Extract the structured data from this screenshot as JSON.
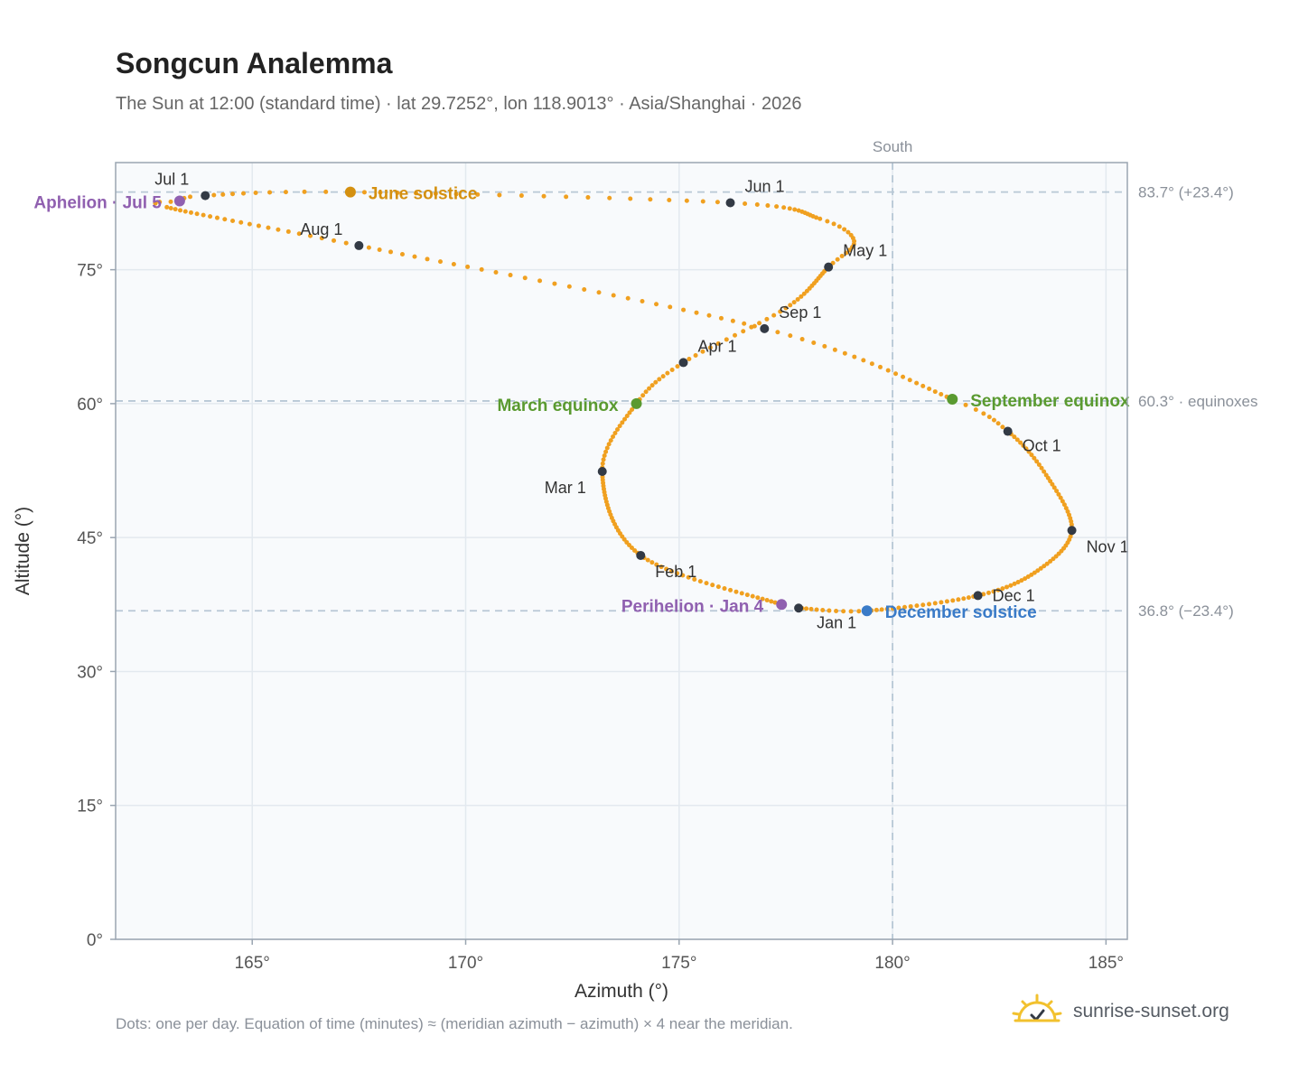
{
  "title": "Songcun Analemma",
  "subtitle": "The Sun at 12:00 (standard time) · lat 29.7252°, lon 118.9013° · Asia/Shanghai · 2026",
  "footnote": "Dots: one per day. Equation of time (minutes) ≈ (meridian azimuth − azimuth) × 4 near the meridian.",
  "brand": {
    "text": "sunrise-sunset.org",
    "icon": "sun-logo-icon"
  },
  "colors": {
    "path": "#f0a020",
    "month_marker": "#333a45",
    "equinox": "#5a9a30",
    "june_solstice": "#d49010",
    "december_solstice": "#3a7bc8",
    "apsis": "#9060b0",
    "guide": "#b8c8d6",
    "plot_bg": "#f8fafc",
    "frame": "#9aa5b1"
  },
  "chart_data": {
    "type": "scatter",
    "xlabel": "Azimuth (°)",
    "ylabel": "Altitude (°)",
    "xlim": [
      161.8,
      185.5
    ],
    "ylim": [
      0,
      87
    ],
    "xticks": [
      165,
      170,
      175,
      180,
      185
    ],
    "xtick_labels": [
      "165°",
      "170°",
      "175°",
      "180°",
      "185°"
    ],
    "yticks": [
      0,
      15,
      30,
      45,
      60,
      75
    ],
    "ytick_labels": [
      "0°",
      "15°",
      "30°",
      "45°",
      "60°",
      "75°"
    ],
    "grid": true,
    "meridian": {
      "x": 180,
      "label": "South"
    },
    "reference_lines": [
      {
        "y": 83.7,
        "label": "83.7° (+23.4°)"
      },
      {
        "y": 60.3,
        "label": "60.3° · equinoxes"
      },
      {
        "y": 36.8,
        "label": "36.8° (−23.4°)"
      }
    ],
    "anchors": [
      {
        "doy": 1,
        "x": 177.8,
        "y": 37.1
      },
      {
        "doy": 4,
        "x": 177.4,
        "y": 37.5
      },
      {
        "doy": 32,
        "x": 174.1,
        "y": 43.0
      },
      {
        "doy": 60,
        "x": 173.2,
        "y": 52.4
      },
      {
        "doy": 79,
        "x": 174.0,
        "y": 60.0
      },
      {
        "doy": 91,
        "x": 175.1,
        "y": 64.6
      },
      {
        "doy": 105,
        "x": 177.5,
        "y": 70.7
      },
      {
        "doy": 121,
        "x": 178.5,
        "y": 75.3
      },
      {
        "doy": 129,
        "x": 179.1,
        "y": 78.2
      },
      {
        "doy": 137,
        "x": 178.3,
        "y": 80.7
      },
      {
        "doy": 152,
        "x": 176.2,
        "y": 82.5
      },
      {
        "doy": 172,
        "x": 167.3,
        "y": 83.7
      },
      {
        "doy": 182,
        "x": 163.9,
        "y": 83.3
      },
      {
        "doy": 186,
        "x": 163.3,
        "y": 82.7
      },
      {
        "doy": 190,
        "x": 163.0,
        "y": 82.0
      },
      {
        "doy": 213,
        "x": 167.5,
        "y": 77.7
      },
      {
        "doy": 244,
        "x": 177.0,
        "y": 68.4
      },
      {
        "doy": 266,
        "x": 181.4,
        "y": 60.5
      },
      {
        "doy": 274,
        "x": 182.7,
        "y": 56.9
      },
      {
        "doy": 288,
        "x": 183.6,
        "y": 52.0
      },
      {
        "doy": 305,
        "x": 184.2,
        "y": 45.8
      },
      {
        "doy": 320,
        "x": 183.4,
        "y": 41.3
      },
      {
        "doy": 335,
        "x": 182.0,
        "y": 38.5
      },
      {
        "doy": 355,
        "x": 179.4,
        "y": 36.8
      },
      {
        "doy": 366,
        "x": 177.8,
        "y": 37.1
      }
    ],
    "month_markers": [
      {
        "label": "Jan 1",
        "x": 177.8,
        "y": 37.1
      },
      {
        "label": "Feb 1",
        "x": 174.1,
        "y": 43.0
      },
      {
        "label": "Mar 1",
        "x": 173.2,
        "y": 52.4
      },
      {
        "label": "Apr 1",
        "x": 175.1,
        "y": 64.6
      },
      {
        "label": "May 1",
        "x": 178.5,
        "y": 75.3
      },
      {
        "label": "Jun 1",
        "x": 176.2,
        "y": 82.5
      },
      {
        "label": "Jul 1",
        "x": 163.9,
        "y": 83.3
      },
      {
        "label": "Aug 1",
        "x": 167.5,
        "y": 77.7
      },
      {
        "label": "Sep 1",
        "x": 177.0,
        "y": 68.4
      },
      {
        "label": "Oct 1",
        "x": 182.7,
        "y": 56.9
      },
      {
        "label": "Nov 1",
        "x": 184.2,
        "y": 45.8
      },
      {
        "label": "Dec 1",
        "x": 182.0,
        "y": 38.5
      }
    ],
    "events": [
      {
        "label": "March equinox",
        "x": 174.0,
        "y": 60.0,
        "kind": "equinox"
      },
      {
        "label": "September equinox",
        "x": 181.4,
        "y": 60.5,
        "kind": "equinox"
      },
      {
        "label": "June solstice",
        "x": 167.3,
        "y": 83.7,
        "kind": "june_solstice"
      },
      {
        "label": "December solstice",
        "x": 179.4,
        "y": 36.8,
        "kind": "december_solstice"
      },
      {
        "label": "Aphelion · Jul 5",
        "x": 163.3,
        "y": 82.7,
        "kind": "apsis"
      },
      {
        "label": "Perihelion · Jan 4",
        "x": 177.4,
        "y": 37.5,
        "kind": "apsis"
      }
    ]
  }
}
